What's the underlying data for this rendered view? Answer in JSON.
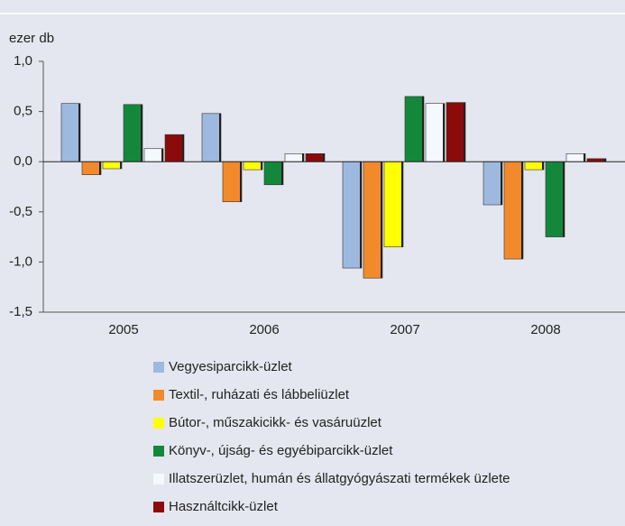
{
  "chart_data": {
    "type": "bar",
    "y_label": "ezer db",
    "categories": [
      "2005",
      "2006",
      "2007",
      "2008"
    ],
    "series": [
      {
        "name": "Vegyesiparcikk-üzlet",
        "color": "#9db9df",
        "values": [
          0.58,
          0.48,
          -1.06,
          -0.43
        ]
      },
      {
        "name": "Textil-, ruházati és lábbeliüzlet",
        "color": "#f28a2c",
        "values": [
          -0.13,
          -0.4,
          -1.16,
          -0.97
        ]
      },
      {
        "name": "Bútor-, műszakicikk- és vasáruüzlet",
        "color": "#ffff00",
        "values": [
          -0.07,
          -0.08,
          -0.85,
          -0.08
        ]
      },
      {
        "name": "Könyv-, újság- és egyébiparcikk-üzlet",
        "color": "#14883a",
        "values": [
          0.57,
          -0.23,
          0.65,
          -0.75
        ]
      },
      {
        "name": "Illatszerüzlet, humán és állatgyógyászati termékek üzlete",
        "color": "#f4f8ff",
        "values": [
          0.13,
          0.08,
          0.58,
          0.08
        ]
      },
      {
        "name": "Használtcikk-üzlet",
        "color": "#8b0a0a",
        "values": [
          0.27,
          0.08,
          0.59,
          0.03
        ]
      }
    ],
    "ylim": [
      -1.5,
      1
    ],
    "yticks": [
      {
        "value": -1.5,
        "label": "-1,5"
      },
      {
        "value": -1,
        "label": "-1,0"
      },
      {
        "value": -0.5,
        "label": "-0,5"
      },
      {
        "value": 0,
        "label": "0,0"
      },
      {
        "value": 0.5,
        "label": "0,5"
      },
      {
        "value": 1,
        "label": "1,0"
      }
    ]
  }
}
